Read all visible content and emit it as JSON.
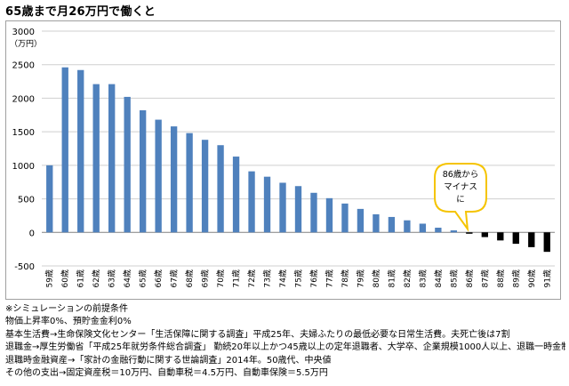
{
  "page": {
    "title": "65歳まで月26万円で働くと"
  },
  "chart_data": {
    "type": "bar",
    "ylabel": "（万円）",
    "ylim": [
      -500,
      3000
    ],
    "yticks": [
      -500,
      0,
      500,
      1000,
      1500,
      2000,
      2500,
      3000
    ],
    "grid": true,
    "categories": [
      "59歳",
      "60歳",
      "61歳",
      "62歳",
      "63歳",
      "64歳",
      "65歳",
      "66歳",
      "67歳",
      "68歳",
      "69歳",
      "70歳",
      "71歳",
      "72歳",
      "73歳",
      "74歳",
      "75歳",
      "76歳",
      "77歳",
      "78歳",
      "79歳",
      "80歳",
      "81歳",
      "82歳",
      "83歳",
      "84歳",
      "85歳",
      "86歳",
      "87歳",
      "88歳",
      "89歳",
      "90歳",
      "91歳"
    ],
    "values": [
      1000,
      2460,
      2420,
      2210,
      2210,
      2020,
      1820,
      1680,
      1580,
      1480,
      1380,
      1300,
      1130,
      910,
      830,
      740,
      690,
      590,
      510,
      430,
      350,
      270,
      230,
      180,
      130,
      70,
      30,
      -20,
      -70,
      -120,
      -170,
      -220,
      -290
    ],
    "colors": {
      "positive": "#4f81bd",
      "negative": "#000000",
      "grid": "#cfcfcf"
    },
    "annotation": {
      "lines": [
        "86歳から",
        "マイナス",
        "に"
      ],
      "category": "86歳",
      "border_color": "#f5c400"
    }
  },
  "notes": {
    "lines": [
      "※シミュレーションの前提条件",
      "物価上昇率0%、預貯金金利0%",
      "基本生活費→生命保険文化センター「生活保障に関する調査」平成25年、夫婦ふたりの最低必要な日常生活費。夫死亡後は7割",
      "退職金→厚生労働省「平成25年就労条件総合調査」 勤続20年以上かつ45歳以上の定年退職者、大学卒、企業規模1000人以上、退職一時金制度のみ",
      "退職時金融資産→「家計の金融行動に関する世論調査」2014年。50歳代、中央値",
      "その他の支出→固定資産税＝10万円、自動車税＝4.5万円、自動車保険＝5.5万円"
    ]
  }
}
